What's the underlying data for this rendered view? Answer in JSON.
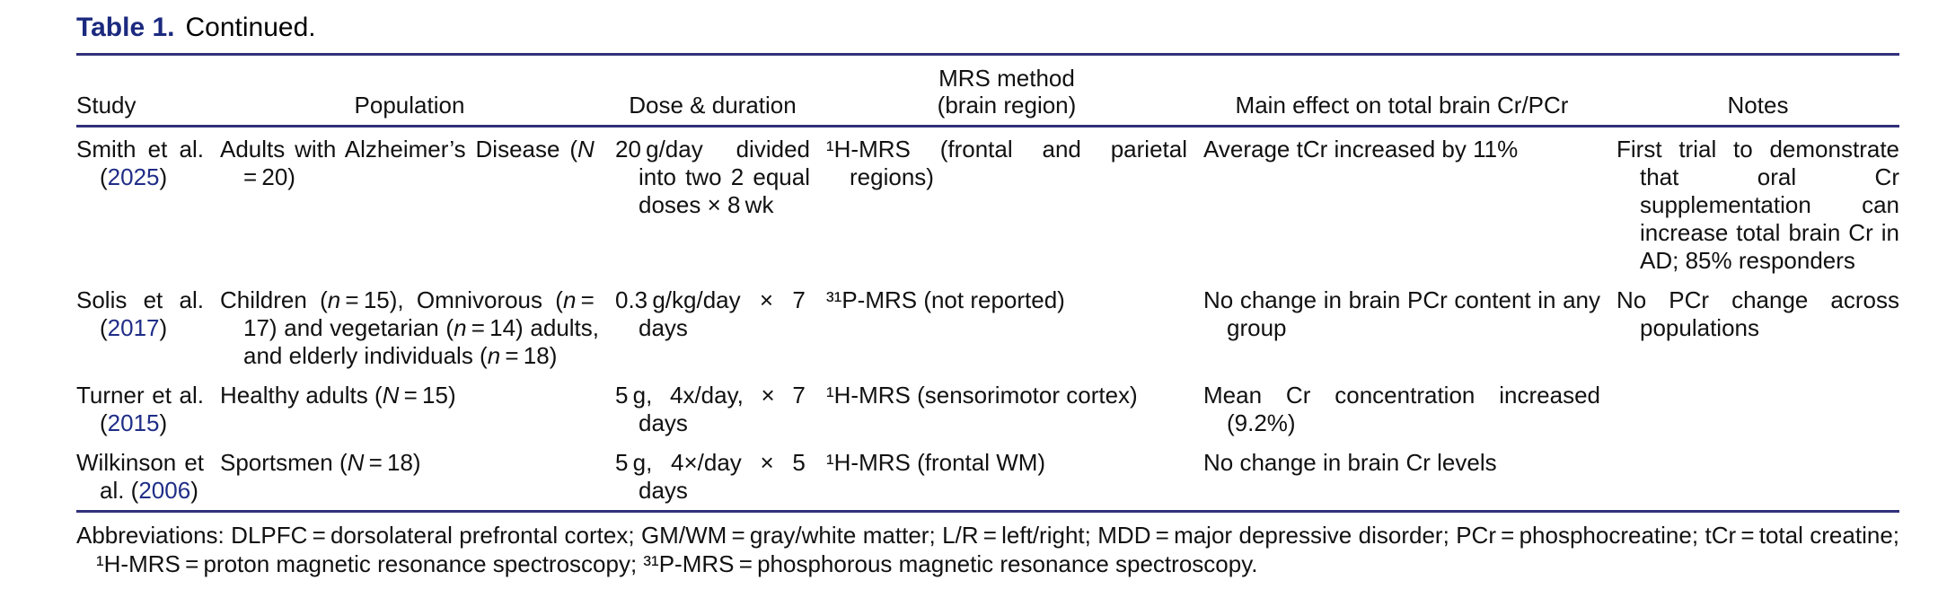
{
  "colors": {
    "navy": "#1b2a7e",
    "link": "#1f2d87",
    "rule": "#31317b",
    "text": "#111111"
  },
  "title": {
    "label": "Table 1.",
    "continued": "Continued."
  },
  "table": {
    "columns": [
      {
        "label": "Study"
      },
      {
        "label": "Population"
      },
      {
        "label": "Dose & duration"
      },
      {
        "label": "MRS method",
        "label2": "(brain region)"
      },
      {
        "label": "Main effect on total brain Cr/PCr"
      },
      {
        "label": "Notes"
      }
    ],
    "rows": [
      {
        "study": "Smith et al. (^2025^)",
        "population": "Adults with Alzheimer’s Disease (_N_ = 20)",
        "dose": "20 g/day divided into two 2 equal doses × 8 wk",
        "mrs": "¹H-MRS (frontal and parietal regions)",
        "effect": "Average tCr increased by 11%",
        "notes": "First trial to demonstrate that oral Cr supplementation can increase total brain Cr in AD; 85% responders"
      },
      {
        "study": "Solis et al. (^2017^)",
        "population": "Children (_n_ = 15), Omnivorous (_n_ = 17) and vegetarian (_n_ = 14) adults, and elderly individuals (_n_ = 18)",
        "dose": "0.3 g/kg/day × 7 days",
        "mrs": "³¹P-MRS (not reported)",
        "effect": "No change in brain PCr content in any group",
        "notes": "No PCr change across populations"
      },
      {
        "study": "Turner et al. (^2015^)",
        "population": "Healthy adults (_N_ = 15)",
        "dose": "5 g, 4x/day, × 7 days",
        "mrs": "¹H-MRS (sensorimotor cortex)",
        "effect": "Mean Cr concentration increased (9.2%)",
        "notes": ""
      },
      {
        "study": "Wilkinson et al. (^2006^)",
        "population": "Sportsmen (_N_ = 18)",
        "dose": "5 g, 4×/day × 5 days",
        "mrs": "¹H-MRS (frontal WM)",
        "effect": "No change in brain Cr levels",
        "notes": ""
      }
    ]
  },
  "footnote": "Abbreviations: DLPFC = dorsolateral prefrontal cortex; GM/WM = gray/white matter; L/R = left/right; MDD = major depressive disorder; PCr = phosphocreatine; tCr = total creatine; ¹H-MRS = proton magnetic resonance spectroscopy; ³¹P-MRS = phosphorous magnetic resonance spectroscopy."
}
